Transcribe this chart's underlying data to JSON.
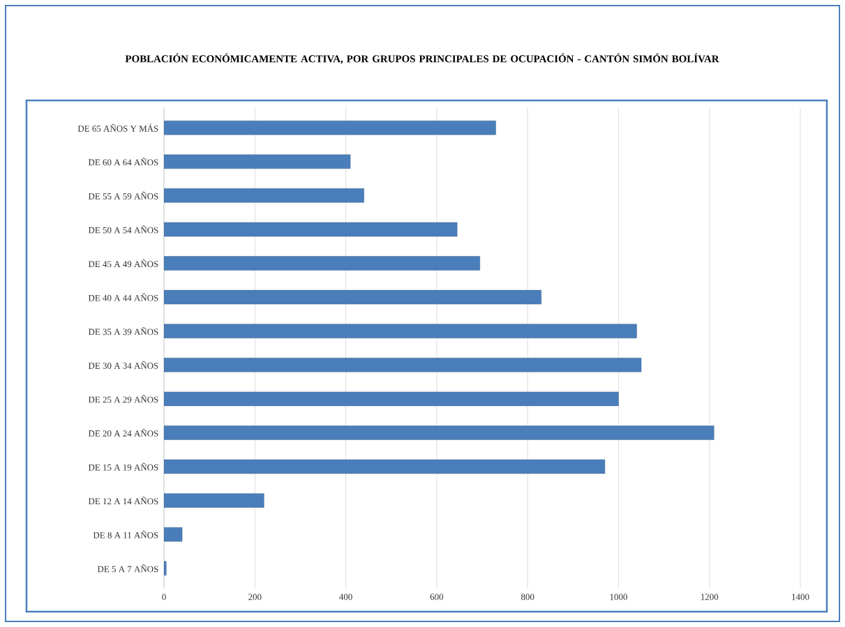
{
  "chart_data": {
    "type": "bar",
    "orientation": "horizontal",
    "title": "POBLACIÓN  ECONÓMICAMENTE ACTIVA, POR GRUPOS PRINCIPALES DE OCUPACIÓN - CANTÓN SIMÓN BOLÍVAR",
    "categories": [
      "DE 65 AÑOS Y MÁS",
      "DE 60 A 64 AÑOS",
      "DE 55 A 59 AÑOS",
      "DE 50 A 54 AÑOS",
      "DE 45 A 49 AÑOS",
      "DE 40 A 44 AÑOS",
      "DE 35 A 39 AÑOS",
      "DE 30 A 34 AÑOS",
      "DE 25 A 29 AÑOS",
      "DE 20 A 24 AÑOS",
      "DE 15 A 19 AÑOS",
      "DE 12 A 14 AÑOS",
      "DE 8 A 11 AÑOS",
      "DE 5 A 7 AÑOS"
    ],
    "values": [
      730,
      410,
      440,
      645,
      695,
      830,
      1040,
      1050,
      1000,
      1210,
      970,
      220,
      40,
      5
    ],
    "color": "#4a7ebb",
    "xlim": [
      0,
      1400
    ],
    "xticks": [
      0,
      200,
      400,
      600,
      800,
      1000,
      1200,
      1400
    ],
    "grid": "x"
  }
}
